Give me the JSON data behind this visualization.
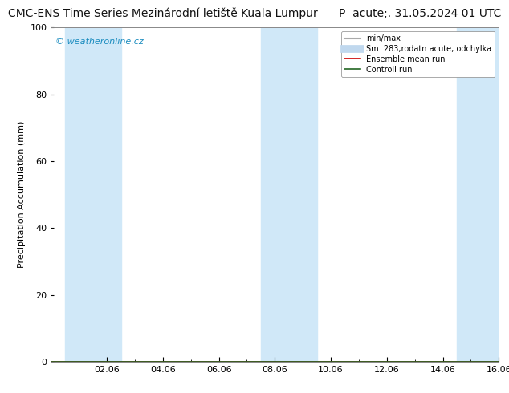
{
  "title": "CMC-ENS Time Series Mezinárodní letiště Kuala Lumpur",
  "title_right": "P  acute;. 31.05.2024 01 UTC",
  "ylabel": "Precipitation Accumulation (mm)",
  "watermark": "© weatheronline.cz",
  "ylim": [
    0,
    100
  ],
  "yticks": [
    0,
    20,
    40,
    60,
    80,
    100
  ],
  "xtick_labels": [
    "02.06",
    "04.06",
    "06.06",
    "08.06",
    "10.06",
    "12.06",
    "14.06",
    "16.06"
  ],
  "xtick_positions": [
    2,
    4,
    6,
    8,
    10,
    12,
    14,
    16
  ],
  "x_min": 0,
  "x_max": 16,
  "background_color": "#ffffff",
  "plot_bg_color": "#ffffff",
  "shaded_bands": [
    {
      "x_start": 0.5,
      "x_end": 2.5,
      "color": "#d0e8f8"
    },
    {
      "x_start": 7.5,
      "x_end": 9.5,
      "color": "#d0e8f8"
    },
    {
      "x_start": 14.5,
      "x_end": 16.0,
      "color": "#d0e8f8"
    }
  ],
  "legend_entries": [
    {
      "label": "min/max",
      "color": "#aaaaaa",
      "lw": 1.5,
      "ls": "-"
    },
    {
      "label": "Sm  283;rodatn acute; odchylka",
      "color": "#c0d8ee",
      "lw": 7,
      "ls": "-"
    },
    {
      "label": "Ensemble mean run",
      "color": "#cc0000",
      "lw": 1.2,
      "ls": "-"
    },
    {
      "label": "Controll run",
      "color": "#226622",
      "lw": 1.2,
      "ls": "-"
    }
  ],
  "title_fontsize": 10,
  "axis_fontsize": 8,
  "tick_fontsize": 8,
  "watermark_color": "#1a8cbf",
  "border_color": "#888888",
  "grid_color": "#cccccc",
  "title_color": "#111111"
}
